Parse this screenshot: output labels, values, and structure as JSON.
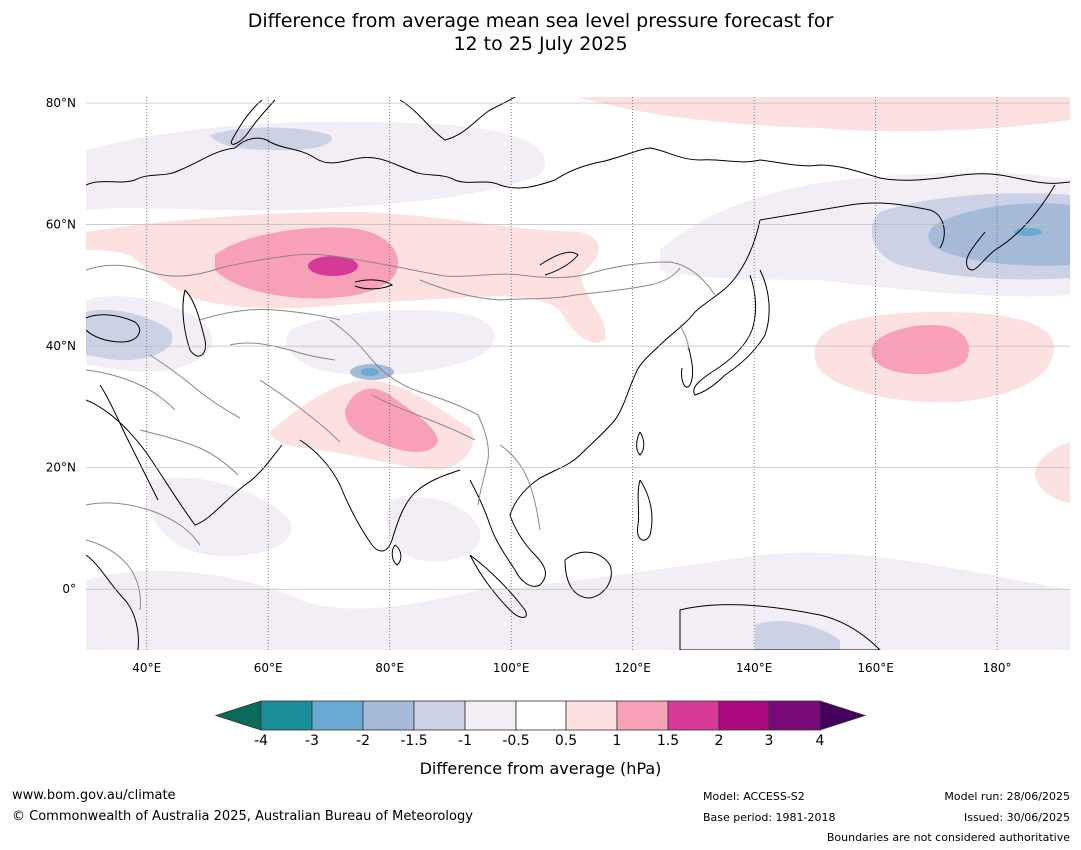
{
  "title": {
    "line1": "Difference from average mean sea level pressure forecast for",
    "line2": "12 to 25 July 2025"
  },
  "map": {
    "lat_labels": [
      "80°N",
      "60°N",
      "40°N",
      "20°N",
      "0°"
    ],
    "lon_labels": [
      "40°E",
      "60°E",
      "80°E",
      "100°E",
      "120°E",
      "140°E",
      "160°E",
      "180°"
    ],
    "extent": {
      "lon": [
        30,
        192
      ],
      "lat": [
        -10,
        81
      ]
    }
  },
  "anomalies": [
    {
      "name": "central-asia-high",
      "center": [
        72,
        53
      ],
      "max": 1.5
    },
    {
      "name": "north-india-high",
      "center": [
        80,
        32
      ],
      "max": 1.0
    },
    {
      "name": "north-pacific-high",
      "center": [
        167,
        39
      ],
      "max": 1.0
    },
    {
      "name": "bering-sea-low",
      "center": [
        180,
        59
      ],
      "min": -1.5
    },
    {
      "name": "arctic-high",
      "center": [
        135,
        79
      ],
      "max": 0.5
    }
  ],
  "colorbar": {
    "ticks": [
      "-4",
      "-3",
      "-2",
      "-1.5",
      "-1",
      "-0.5",
      "0.5",
      "1",
      "1.5",
      "2",
      "3",
      "4"
    ],
    "colors": [
      "#1a8f99",
      "#6aa9d2",
      "#a5b9d9",
      "#cdd1e6",
      "#f3eef6",
      "#ffffff",
      "#fde0e0",
      "#f8a0b8",
      "#d63a99",
      "#ab0a7f",
      "#7a0a7a"
    ],
    "under_color": "#0a6a5c",
    "over_color": "#46005e",
    "label": "Difference from average (hPa)"
  },
  "footer": {
    "url": "www.bom.gov.au/climate",
    "copyright": "© Commonwealth of Australia 2025, Australian Bureau of Meteorology",
    "model": "Model: ACCESS-S2",
    "base_period": "Base period: 1981-2018",
    "model_run": "Model run: 28/06/2025",
    "issued": "Issued: 30/06/2025",
    "disclaimer": "Boundaries are not considered authoritative"
  }
}
